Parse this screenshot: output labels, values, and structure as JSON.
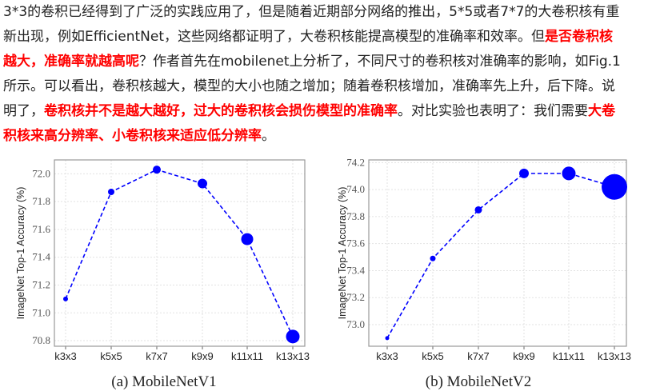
{
  "paragraph": {
    "lines": [
      [
        {
          "text": "3*3的卷积已经得到了广泛的实践应用了，但是随着近期部分网络的推出，5*5或者7*7的大卷积核有重",
          "emphasis": false
        }
      ],
      [
        {
          "text": "新出现，例如EfficientNet，这些网络都证明了，大卷积核能提高模型的准确率和效率。但",
          "emphasis": false
        },
        {
          "text": "是否卷积核",
          "emphasis": true
        }
      ],
      [
        {
          "text": "越大，准确率就越高呢",
          "emphasis": true
        },
        {
          "text": "？作者首先在mobilenet上分析了，不同尺寸的卷积核对准确率的影响，如Fig.1",
          "emphasis": false
        }
      ],
      [
        {
          "text": "所示。可以看出，卷积核越大，模型的大小也随之增加；随着卷积核增加，准确率先上升，后下降。说",
          "emphasis": false
        }
      ],
      [
        {
          "text": "明了，",
          "emphasis": false
        },
        {
          "text": "卷积核并不是越大越好，过大的卷积核会损伤模型的准确率",
          "emphasis": true
        },
        {
          "text": "。对比实验也表明了：我们需要",
          "emphasis": false
        },
        {
          "text": "大卷",
          "emphasis": true
        }
      ],
      [
        {
          "text": "积核来高分辨率、小卷积核来适应低分辨率",
          "emphasis": true
        },
        {
          "text": "。",
          "emphasis": false
        }
      ]
    ],
    "emphasis_color": "#ff0000"
  },
  "chart_data": [
    {
      "type": "line",
      "title": "(a) MobileNetV1",
      "ylabel": "ImageNet Top-1 Accuracy (%)",
      "categories": [
        "k3x3",
        "k5x5",
        "k7x7",
        "k9x9",
        "k11x11",
        "k13x13"
      ],
      "values": [
        71.1,
        71.87,
        72.03,
        71.93,
        71.53,
        70.83
      ],
      "yticks": [
        "70.8",
        "71.0",
        "71.2",
        "71.4",
        "71.6",
        "71.8",
        "72.0"
      ],
      "ylim": [
        70.76,
        72.1
      ],
      "grid": true,
      "line_style": "dashed",
      "color": "#0000ff",
      "marker_size_encodes": "model size"
    },
    {
      "type": "line",
      "title": "(b) MobileNetV2",
      "ylabel": "ImageNet Top-1 Accuracy (%)",
      "categories": [
        "k3x3",
        "k5x5",
        "k7x7",
        "k9x9",
        "k11x11",
        "k13x13"
      ],
      "values": [
        72.9,
        73.49,
        73.85,
        74.12,
        74.12,
        74.02
      ],
      "yticks": [
        "73.0",
        "73.2",
        "73.4",
        "73.6",
        "73.8",
        "74.0",
        "74.2"
      ],
      "ylim": [
        72.84,
        74.22
      ],
      "grid": true,
      "line_style": "dashed",
      "color": "#0000ff",
      "marker_size_encodes": "model size"
    }
  ]
}
